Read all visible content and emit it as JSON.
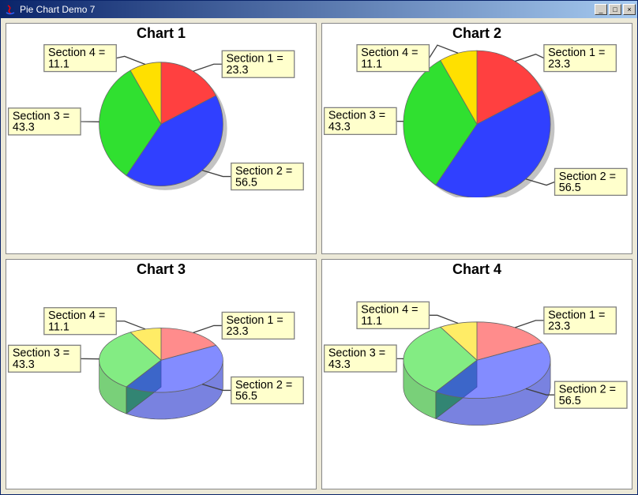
{
  "window": {
    "title": "Pie Chart Demo 7",
    "btn_min": "_",
    "btn_max": "□",
    "btn_close": "×"
  },
  "slices": [
    {
      "label": "Section 1",
      "value": 23.3,
      "color": "#ff4040",
      "color3d_side": "#cc3030",
      "label_anchor": "right-top"
    },
    {
      "label": "Section 2",
      "value": 56.5,
      "color": "#3040ff",
      "color3d_side": "#202ecc",
      "label_anchor": "right-bottom"
    },
    {
      "label": "Section 3",
      "value": 43.3,
      "color": "#30e030",
      "color3d_side": "#20b020",
      "label_anchor": "left-mid"
    },
    {
      "label": "Section 4",
      "value": 11.1,
      "color": "#ffe000",
      "color3d_side": "#ccb000",
      "label_anchor": "left-top"
    }
  ],
  "label_box": {
    "bg": "#ffffcc",
    "border": "#808080",
    "fontsize": 11,
    "color": "#000000"
  },
  "panels": [
    {
      "title": "Chart 1",
      "threeD": false,
      "alpha": 1.0,
      "radiusScale": 0.8
    },
    {
      "title": "Chart 2",
      "threeD": false,
      "alpha": 1.0,
      "radiusScale": 0.95
    },
    {
      "title": "Chart 3",
      "threeD": true,
      "alpha": 0.6,
      "radiusScale": 0.8
    },
    {
      "title": "Chart 4",
      "threeD": true,
      "alpha": 0.6,
      "radiusScale": 0.95
    }
  ],
  "chart": {
    "start_angle_deg": 90,
    "direction": "clockwise",
    "shadow_color": "#888888",
    "shadow_dx": 4,
    "shadow_dy": 4,
    "leader_color": "#404040",
    "tilt3d": 0.52,
    "depth3d": 26
  }
}
